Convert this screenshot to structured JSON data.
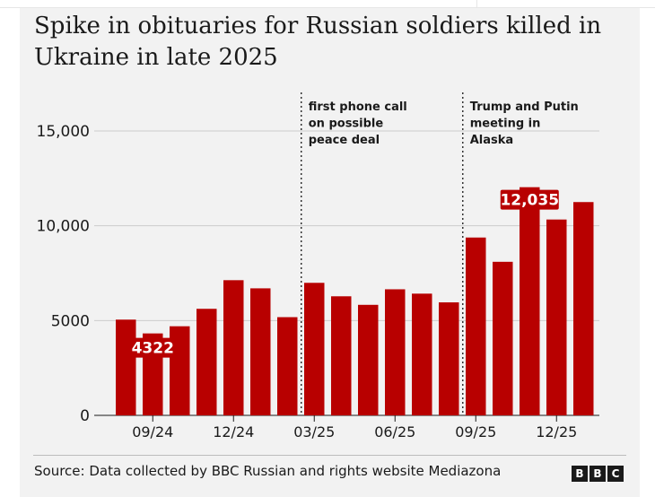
{
  "title": "Spike in obituaries for Russian soldiers killed in Ukraine in late 2025",
  "source": "Source: Data collected by BBC Russian and rights website Mediazona",
  "logo": [
    "B",
    "B",
    "C"
  ],
  "colors": {
    "bar": "#b80000",
    "label_bg": "#b80000",
    "label_text": "#ffffff"
  },
  "chart_data": {
    "type": "bar",
    "title": "Spike in obituaries for Russian soldiers killed in Ukraine in late 2025",
    "xlabel": "",
    "ylabel": "",
    "ylim": [
      0,
      15000
    ],
    "yticks": [
      {
        "value": 0,
        "label": "0"
      },
      {
        "value": 5000,
        "label": "5000"
      },
      {
        "value": 10000,
        "label": "10,000"
      },
      {
        "value": 15000,
        "label": "15,000"
      }
    ],
    "categories": [
      "08/24",
      "09/24",
      "10/24",
      "11/24",
      "12/24",
      "01/25",
      "02/25",
      "03/25",
      "04/25",
      "05/25",
      "06/25",
      "07/25",
      "08/25",
      "09/25",
      "10/25",
      "11/25",
      "12/25",
      "01/26"
    ],
    "values": [
      5050,
      4322,
      4700,
      5620,
      7130,
      6700,
      5180,
      6990,
      6280,
      5830,
      6650,
      6420,
      5960,
      9380,
      8100,
      12035,
      10330,
      11250
    ],
    "xtick_labels": [
      {
        "index": 1,
        "label": "09/24"
      },
      {
        "index": 4,
        "label": "12/24"
      },
      {
        "index": 7,
        "label": "03/25"
      },
      {
        "index": 10,
        "label": "06/25"
      },
      {
        "index": 13,
        "label": "09/25"
      },
      {
        "index": 16,
        "label": "12/25"
      }
    ],
    "data_labels": [
      {
        "index": 1,
        "label": "4322"
      },
      {
        "index": 15,
        "label": "12,035"
      }
    ],
    "annotations": [
      {
        "after_index": 6,
        "lines": [
          "first phone call",
          "on possible",
          "peace deal"
        ]
      },
      {
        "after_index": 12,
        "lines": [
          "Trump and Putin",
          "meeting in",
          "Alaska"
        ]
      }
    ],
    "grid": true,
    "legend": "none"
  }
}
